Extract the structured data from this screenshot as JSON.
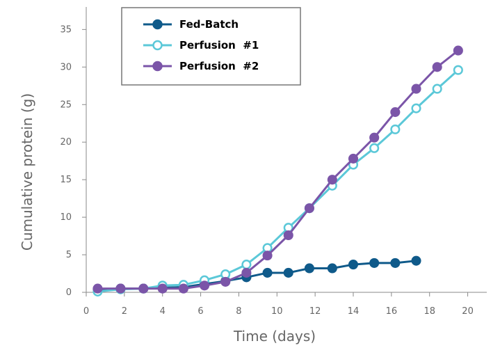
{
  "chart_data": {
    "type": "line",
    "xlabel": "Time (days)",
    "ylabel": "Cumulative protein  (g)",
    "xlim": [
      0,
      21
    ],
    "ylim": [
      0,
      38
    ],
    "xticks": [
      0,
      2,
      4,
      6,
      8,
      10,
      12,
      14,
      16,
      18,
      20
    ],
    "yticks": [
      0,
      5,
      10,
      15,
      20,
      25,
      30,
      35
    ],
    "grid": false,
    "legend_position": "top-center",
    "series": [
      {
        "name": "Fed-Batch",
        "color": "#0f5a8a",
        "marker": "filled-circle",
        "x": [
          0.6,
          1.8,
          3.0,
          4.0,
          5.1,
          6.2,
          7.3,
          8.4,
          9.5,
          10.6,
          11.7,
          12.9,
          14.0,
          15.1,
          16.2,
          17.3
        ],
        "y": [
          0.4,
          0.5,
          0.5,
          0.6,
          0.7,
          1.1,
          1.5,
          2.0,
          2.6,
          2.6,
          3.2,
          3.2,
          3.7,
          3.9,
          3.9,
          4.2
        ]
      },
      {
        "name": "Perfusion  #1",
        "color": "#5bc8d8",
        "marker": "open-circle",
        "x": [
          0.6,
          1.8,
          3.0,
          4.0,
          5.1,
          6.2,
          7.3,
          8.4,
          9.5,
          10.6,
          11.7,
          12.9,
          14.0,
          15.1,
          16.2,
          17.3,
          18.4,
          19.5
        ],
        "y": [
          0.1,
          0.4,
          0.5,
          0.9,
          1.0,
          1.6,
          2.4,
          3.7,
          5.9,
          8.6,
          11.2,
          14.2,
          17.0,
          19.2,
          21.7,
          24.5,
          27.1,
          29.6
        ]
      },
      {
        "name": "Perfusion  #2",
        "color": "#7b55a8",
        "marker": "filled-circle",
        "x": [
          0.6,
          1.8,
          3.0,
          4.0,
          5.1,
          6.2,
          7.3,
          8.4,
          9.5,
          10.6,
          11.7,
          12.9,
          14.0,
          15.1,
          16.2,
          17.3,
          18.4,
          19.5
        ],
        "y": [
          0.5,
          0.5,
          0.5,
          0.5,
          0.5,
          0.9,
          1.4,
          2.6,
          4.9,
          7.6,
          11.2,
          15.0,
          17.8,
          20.6,
          24.0,
          27.1,
          30.0,
          32.2
        ]
      }
    ]
  }
}
